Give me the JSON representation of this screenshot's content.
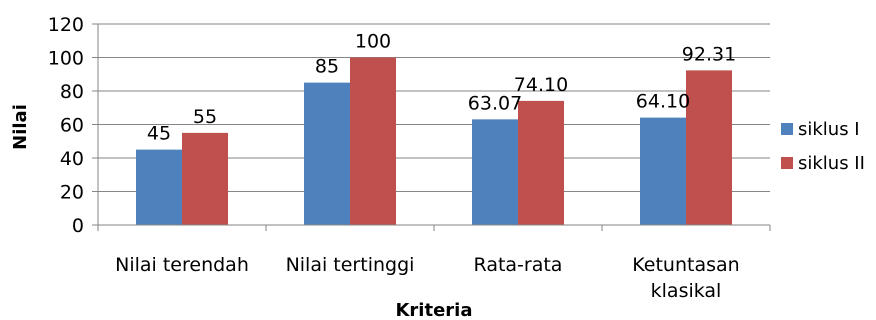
{
  "chart_data": {
    "type": "bar",
    "categories": [
      "Nilai terendah",
      "Nilai tertinggi",
      "Rata-rata",
      "Ketuntasan\nklasikal"
    ],
    "series": [
      {
        "name": "siklus I",
        "values": [
          45,
          85,
          63.07,
          64.1
        ],
        "labels": [
          "45",
          "85",
          "63.07",
          "64.10"
        ],
        "color": "#4F81BD"
      },
      {
        "name": "siklus II",
        "values": [
          55,
          100,
          74.1,
          92.31
        ],
        "labels": [
          "55",
          "100",
          "74.10",
          "92.31"
        ],
        "color": "#C0504D"
      }
    ],
    "xlabel": "Kriteria",
    "ylabel": "Nilai",
    "ylim": [
      0,
      120
    ],
    "yticks": [
      0,
      20,
      40,
      60,
      80,
      100,
      120
    ],
    "grid": true,
    "legend": "right"
  }
}
